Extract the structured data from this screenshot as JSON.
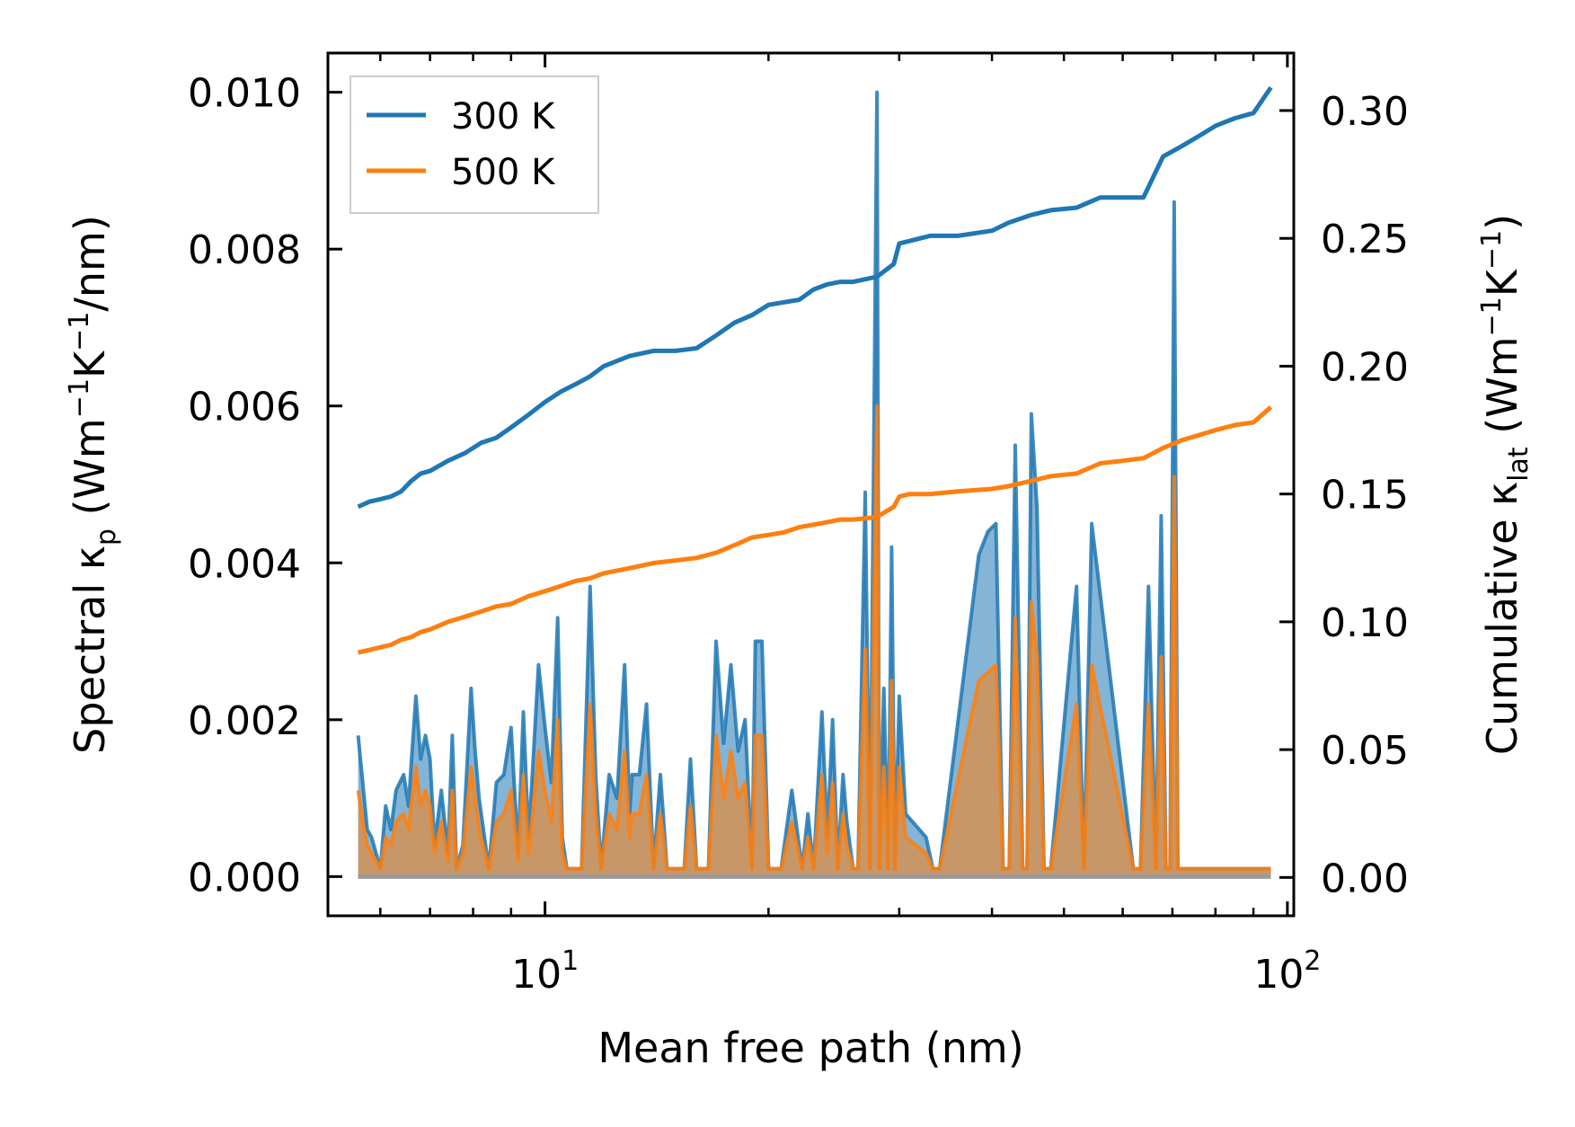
{
  "chart_data": {
    "type": "line",
    "title": "",
    "xlabel": "Mean free path (nm)",
    "ylabel_left": {
      "main": "Spectral κ",
      "sub": "p",
      "paren_start": " (Wm",
      "sup1": "−1",
      "mid": "K",
      "sup2": "−1",
      "paren_end": "/nm)"
    },
    "ylabel_right": {
      "main": "Cumulative κ",
      "sub": "lat",
      "paren_start": " (Wm",
      "sup1": "−1",
      "mid": "K",
      "sup2": "−1",
      "paren_end": ")"
    },
    "xscale": "log",
    "xlim": [
      5.1,
      102
    ],
    "ylim_left": [
      -0.0005,
      0.0105
    ],
    "ylim_right": [
      -0.015,
      0.3225
    ],
    "x_ticks": [
      {
        "value": 10,
        "base": "10",
        "exp": "1"
      },
      {
        "value": 100,
        "base": "10",
        "exp": "2"
      }
    ],
    "y_left_ticks": [
      0.0,
      0.002,
      0.004,
      0.006,
      0.008,
      0.01
    ],
    "y_left_tick_labels": [
      "0.000",
      "0.002",
      "0.004",
      "0.006",
      "0.008",
      "0.010"
    ],
    "y_right_ticks": [
      0.0,
      0.05,
      0.1,
      0.15,
      0.2,
      0.25,
      0.3
    ],
    "y_right_tick_labels": [
      "0.00",
      "0.05",
      "0.10",
      "0.15",
      "0.20",
      "0.25",
      "0.30"
    ],
    "legend": {
      "position": "top-left",
      "entries": [
        "300 K",
        "500 K"
      ]
    },
    "colors": {
      "300 K": "#1f77b4",
      "500 K": "#ff7f0e"
    },
    "cumulative_series": [
      {
        "name": "300 K",
        "axis": "right",
        "x": [
          5.6,
          5.8,
          6.0,
          6.2,
          6.4,
          6.6,
          6.8,
          7.0,
          7.4,
          7.8,
          8.2,
          8.6,
          9.0,
          9.5,
          10.0,
          10.5,
          11.0,
          11.5,
          12.0,
          13.0,
          14.0,
          15.0,
          16.0,
          17.0,
          18.0,
          19.0,
          20.0,
          21.0,
          22.0,
          23.0,
          24.0,
          25.0,
          26.0,
          28.0,
          29.5,
          30.0,
          31.0,
          33.0,
          36.0,
          40.0,
          42.0,
          45.0,
          48.0,
          52.0,
          56.0,
          60.0,
          64.0,
          68.0,
          72.0,
          76.0,
          80.0,
          85.0,
          90.0,
          95.0
        ],
        "y": [
          0.145,
          0.147,
          0.148,
          0.149,
          0.151,
          0.155,
          0.158,
          0.159,
          0.163,
          0.166,
          0.17,
          0.172,
          0.176,
          0.181,
          0.186,
          0.19,
          0.193,
          0.196,
          0.2,
          0.204,
          0.206,
          0.206,
          0.207,
          0.212,
          0.217,
          0.22,
          0.224,
          0.225,
          0.226,
          0.23,
          0.232,
          0.233,
          0.233,
          0.235,
          0.24,
          0.248,
          0.249,
          0.251,
          0.251,
          0.253,
          0.256,
          0.259,
          0.261,
          0.262,
          0.266,
          0.266,
          0.266,
          0.282,
          0.286,
          0.29,
          0.294,
          0.297,
          0.299,
          0.309
        ]
      },
      {
        "name": "500 K",
        "axis": "right",
        "x": [
          5.6,
          5.8,
          6.0,
          6.2,
          6.4,
          6.6,
          6.8,
          7.0,
          7.4,
          7.8,
          8.2,
          8.6,
          9.0,
          9.5,
          10.0,
          10.5,
          11.0,
          11.5,
          12.0,
          13.0,
          14.0,
          15.0,
          16.0,
          17.0,
          18.0,
          19.0,
          20.0,
          21.0,
          22.0,
          23.0,
          24.0,
          25.0,
          26.0,
          28.0,
          29.5,
          30.0,
          31.0,
          33.0,
          36.0,
          40.0,
          42.0,
          45.0,
          48.0,
          52.0,
          56.0,
          60.0,
          64.0,
          68.0,
          72.0,
          76.0,
          80.0,
          85.0,
          90.0,
          95.0
        ],
        "y": [
          0.088,
          0.089,
          0.09,
          0.091,
          0.093,
          0.094,
          0.096,
          0.097,
          0.1,
          0.102,
          0.104,
          0.106,
          0.107,
          0.11,
          0.112,
          0.114,
          0.116,
          0.117,
          0.119,
          0.121,
          0.123,
          0.124,
          0.125,
          0.127,
          0.13,
          0.133,
          0.134,
          0.135,
          0.137,
          0.138,
          0.139,
          0.14,
          0.14,
          0.141,
          0.145,
          0.149,
          0.15,
          0.15,
          0.151,
          0.152,
          0.153,
          0.155,
          0.157,
          0.158,
          0.162,
          0.163,
          0.164,
          0.168,
          0.171,
          0.173,
          0.175,
          0.177,
          0.178,
          0.184
        ]
      }
    ],
    "spectral_series": [
      {
        "name": "300 K",
        "axis": "left",
        "x": [
          5.6,
          5.68,
          5.76,
          5.84,
          5.92,
          6.0,
          6.1,
          6.2,
          6.3,
          6.45,
          6.55,
          6.6,
          6.7,
          6.8,
          6.9,
          7.0,
          7.1,
          7.25,
          7.4,
          7.5,
          7.6,
          7.75,
          7.95,
          8.05,
          8.15,
          8.4,
          8.6,
          8.8,
          9.0,
          9.2,
          9.35,
          9.5,
          9.6,
          9.8,
          10.0,
          10.2,
          10.4,
          10.55,
          10.7,
          11.0,
          11.2,
          11.5,
          11.7,
          11.9,
          12.2,
          12.5,
          12.8,
          13.0,
          13.1,
          13.4,
          13.7,
          14.0,
          14.3,
          14.6,
          15.4,
          15.7,
          16.0,
          16.6,
          17.0,
          17.4,
          17.8,
          18.2,
          18.6,
          19.0,
          19.2,
          19.6,
          20.0,
          20.4,
          20.8,
          21.5,
          22.2,
          22.6,
          23.0,
          23.6,
          24.0,
          24.4,
          24.8,
          25.2,
          25.5,
          26.0,
          26.4,
          27.0,
          27.4,
          28.0,
          28.2,
          28.6,
          29.0,
          29.3,
          29.6,
          30.0,
          30.6,
          32.6,
          33.3,
          34.0,
          38.4,
          39.5,
          40.5,
          41.4,
          42.2,
          43.0,
          44.0,
          44.6,
          45.2,
          46.0,
          47.0,
          48.0,
          52.0,
          53.2,
          54.5,
          62.0,
          63.4,
          65.0,
          66.5,
          67.6,
          68.6,
          69.5,
          70.4,
          71.2,
          72.0,
          73.5,
          74.8,
          76.0,
          77.5,
          79.0,
          80.5,
          82.0,
          83.2,
          84.5,
          87.0,
          88.8,
          90.5,
          94.0,
          95.0
        ],
        "y": [
          0.0018,
          0.0012,
          0.0006,
          0.0005,
          0.0003,
          0.0001,
          0.0009,
          0.0006,
          0.0011,
          0.0013,
          0.0009,
          0.0014,
          0.0023,
          0.0015,
          0.0018,
          0.0015,
          0.0004,
          0.0011,
          0.0003,
          0.0018,
          0.0001,
          0.0004,
          0.0024,
          0.0016,
          0.001,
          0.0001,
          0.0012,
          0.0013,
          0.0019,
          0.0003,
          0.0021,
          0.0005,
          0.0012,
          0.0027,
          0.0019,
          0.0012,
          0.0033,
          0.0005,
          0.0001,
          0.0001,
          0.0001,
          0.0037,
          0.0013,
          0.0001,
          0.0013,
          0.001,
          0.0027,
          0.0008,
          0.0013,
          0.0013,
          0.0022,
          0.0001,
          0.0013,
          0.0001,
          0.0001,
          0.0015,
          0.0001,
          0.0001,
          0.003,
          0.0017,
          0.0027,
          0.0016,
          0.002,
          0.0001,
          0.003,
          0.003,
          0.0001,
          0.0001,
          0.0001,
          0.0011,
          0.0001,
          0.0008,
          0.0001,
          0.0021,
          0.0005,
          0.002,
          0.0001,
          0.0013,
          0.0007,
          0.0001,
          0.0001,
          0.0049,
          0.0001,
          0.01,
          0.0001,
          0.0024,
          0.0001,
          0.0042,
          0.0001,
          0.0023,
          0.0008,
          0.0005,
          0.0001,
          0.0001,
          0.0041,
          0.0044,
          0.0045,
          0.0001,
          0.0001,
          0.0055,
          0.0001,
          0.0001,
          0.0059,
          0.0047,
          0.0001,
          0.0001,
          0.0037,
          0.0001,
          0.0045,
          0.0001,
          0.0001,
          0.0037,
          0.0001,
          0.0046,
          0.0001,
          0.0001,
          0.0086,
          0.0001,
          0.0001,
          0.0001,
          0.0001,
          0.0001,
          0.0001,
          0.0001,
          0.0001,
          0.0001,
          0.0001,
          0.0001,
          0.0001,
          0.0001,
          0.0001,
          0.0001,
          0.0001
        ]
      },
      {
        "name": "500 K",
        "axis": "left",
        "x": [
          5.6,
          5.68,
          5.76,
          5.84,
          5.92,
          6.0,
          6.1,
          6.2,
          6.3,
          6.45,
          6.55,
          6.6,
          6.7,
          6.8,
          6.9,
          7.0,
          7.1,
          7.25,
          7.4,
          7.5,
          7.6,
          7.75,
          7.95,
          8.05,
          8.15,
          8.4,
          8.6,
          8.8,
          9.0,
          9.2,
          9.35,
          9.5,
          9.6,
          9.8,
          10.0,
          10.2,
          10.4,
          10.55,
          10.7,
          11.0,
          11.2,
          11.5,
          11.7,
          11.9,
          12.2,
          12.5,
          12.8,
          13.0,
          13.1,
          13.4,
          13.7,
          14.0,
          14.3,
          14.6,
          15.4,
          15.7,
          16.0,
          16.6,
          17.0,
          17.4,
          17.8,
          18.2,
          18.6,
          19.0,
          19.2,
          19.6,
          20.0,
          20.4,
          20.8,
          21.5,
          22.2,
          22.6,
          23.0,
          23.6,
          24.0,
          24.4,
          24.8,
          25.2,
          25.5,
          26.0,
          26.4,
          27.0,
          27.4,
          28.0,
          28.2,
          28.6,
          29.0,
          29.3,
          29.6,
          30.0,
          30.6,
          32.6,
          33.3,
          34.0,
          38.4,
          39.5,
          40.5,
          41.4,
          42.2,
          43.0,
          44.0,
          44.6,
          45.2,
          46.0,
          47.0,
          48.0,
          52.0,
          53.2,
          54.5,
          62.0,
          63.4,
          65.0,
          66.5,
          67.6,
          68.6,
          69.5,
          70.4,
          71.2,
          72.0,
          73.5,
          74.8,
          76.0,
          77.5,
          79.0,
          80.5,
          82.0,
          83.2,
          84.5,
          87.0,
          88.8,
          90.5,
          94.0,
          95.0
        ],
        "y": [
          0.0011,
          0.0007,
          0.0004,
          0.0003,
          0.0002,
          0.0001,
          0.0005,
          0.0004,
          0.0007,
          0.0008,
          0.0006,
          0.0009,
          0.0014,
          0.0009,
          0.0011,
          0.0009,
          0.0003,
          0.0007,
          0.0002,
          0.0011,
          0.0001,
          0.0003,
          0.0014,
          0.001,
          0.0006,
          0.0001,
          0.0007,
          0.0008,
          0.0011,
          0.0002,
          0.0013,
          0.0003,
          0.0007,
          0.0016,
          0.0011,
          0.0007,
          0.002,
          0.0003,
          0.0001,
          0.0001,
          0.0001,
          0.0022,
          0.0008,
          0.0001,
          0.0008,
          0.0006,
          0.0016,
          0.0005,
          0.0008,
          0.0008,
          0.0013,
          0.0001,
          0.0008,
          0.0001,
          0.0001,
          0.0009,
          0.0001,
          0.0001,
          0.0018,
          0.001,
          0.0016,
          0.001,
          0.0012,
          0.0001,
          0.0018,
          0.0018,
          0.0001,
          0.0001,
          0.0001,
          0.0007,
          0.0001,
          0.0005,
          0.0001,
          0.0013,
          0.0003,
          0.0012,
          0.0001,
          0.0008,
          0.0004,
          0.0001,
          0.0001,
          0.0029,
          0.0001,
          0.006,
          0.0001,
          0.0014,
          0.0001,
          0.0025,
          0.0001,
          0.0014,
          0.0005,
          0.0003,
          0.0001,
          0.0001,
          0.0025,
          0.0026,
          0.0027,
          0.0001,
          0.0001,
          0.0033,
          0.0001,
          0.0001,
          0.0035,
          0.0028,
          0.0001,
          0.0001,
          0.0022,
          0.0001,
          0.0027,
          0.0001,
          0.0001,
          0.0022,
          0.0001,
          0.0028,
          0.0001,
          0.0001,
          0.0051,
          0.0001,
          0.0001,
          0.0001,
          0.0001,
          0.0001,
          0.0001,
          0.0001,
          0.0001,
          0.0001,
          0.0001,
          0.0001,
          0.0001,
          0.0001,
          0.0001,
          0.0001,
          0.0001
        ]
      }
    ]
  }
}
